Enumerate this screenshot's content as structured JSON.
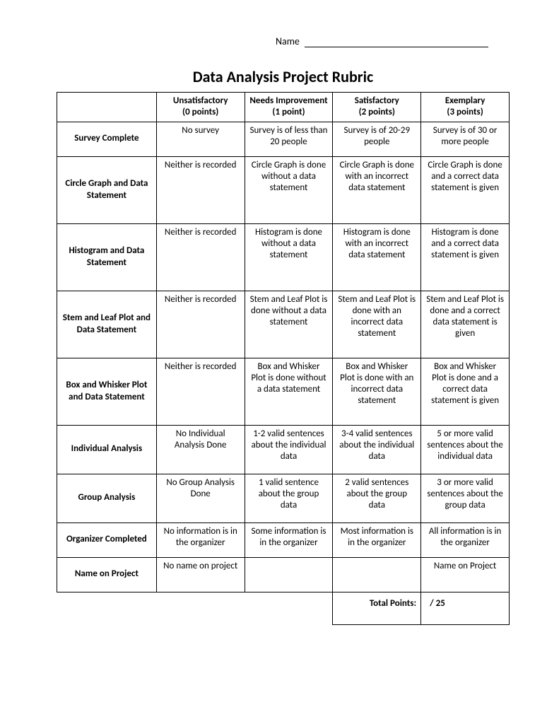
{
  "name_label": "Name",
  "title": "Data Analysis Project Rubric",
  "columns": [
    {
      "name": "Unsatisfactory",
      "points": "(0 points)"
    },
    {
      "name": "Needs Improvement",
      "points": "(1 point)"
    },
    {
      "name": "Satisfactory",
      "points": "(2 points)"
    },
    {
      "name": "Exemplary",
      "points": "(3 points)"
    }
  ],
  "rows": [
    {
      "label": "Survey Complete",
      "height": "short",
      "cells": [
        "No survey",
        "Survey is of less than 20 people",
        "Survey is of 20-29 people",
        "Survey is of 30 or more people"
      ]
    },
    {
      "label": "Circle Graph and Data Statement",
      "height": "tall",
      "cells": [
        "Neither is recorded",
        "Circle Graph is done without a data statement",
        "Circle Graph is done with an incorrect data statement",
        "Circle Graph is done and a correct data statement is given"
      ]
    },
    {
      "label": "Histogram and Data Statement",
      "height": "tall",
      "cells": [
        "Neither is recorded",
        "Histogram is done without a data statement",
        "Histogram is done with an incorrect data statement",
        "Histogram is done and a correct data statement is given"
      ]
    },
    {
      "label": "Stem and Leaf Plot and Data Statement",
      "height": "tall",
      "cells": [
        "Neither is recorded",
        "Stem and Leaf Plot is done without a data statement",
        "Stem and Leaf Plot is done with an incorrect data statement",
        "Stem and Leaf Plot is done and a correct data statement is given"
      ]
    },
    {
      "label": "Box and Whisker Plot and Data Statement",
      "height": "tall",
      "cells": [
        "Neither is recorded",
        "Box and Whisker Plot is done without a data statement",
        "Box and Whisker Plot is done with an incorrect data statement",
        "Box and Whisker Plot is done and a correct data statement is given"
      ]
    },
    {
      "label": "Individual Analysis",
      "height": "med",
      "cells": [
        "No Individual Analysis Done",
        "1-2 valid sentences about the individual data",
        "3-4 valid sentences about the individual data",
        "5 or more valid sentences about the individual data"
      ]
    },
    {
      "label": "Group Analysis",
      "height": "med",
      "cells": [
        "No Group Analysis Done",
        "1 valid sentence about the group data",
        "2 valid sentences about the group data",
        "3 or more valid sentences about the group data"
      ]
    },
    {
      "label": "Organizer Completed",
      "height": "short",
      "cells": [
        "No information is in the organizer",
        "Some information is in the organizer",
        "Most information is in the organizer",
        "All information is in the organizer"
      ]
    },
    {
      "label": "Name on Project",
      "height": "short",
      "cells": [
        "No name on project",
        "",
        "",
        "Name on Project"
      ]
    }
  ],
  "totals": {
    "label": "Total Points:",
    "max": "/ 25"
  }
}
